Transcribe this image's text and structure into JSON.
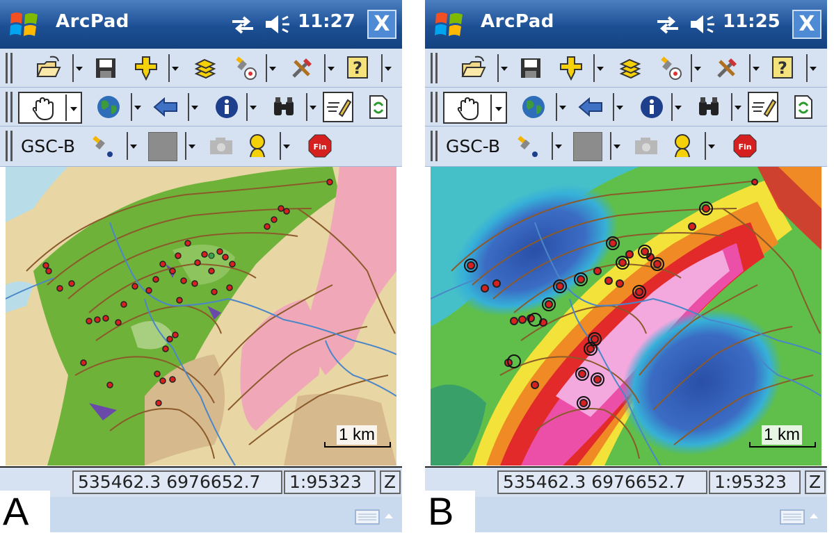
{
  "panels": [
    {
      "letter": "A",
      "app_title": "ArcPad",
      "clock": "11:27",
      "close_label": "X",
      "layer_label": "GSC-B",
      "scale_bar_label": "1 km",
      "status": {
        "coords": "535462.3 6976652.7 m",
        "scale": "1:95323",
        "zone": "Z"
      }
    },
    {
      "letter": "B",
      "app_title": "ArcPad",
      "clock": "11:25",
      "close_label": "X",
      "layer_label": "GSC-B",
      "scale_bar_label": "1 km",
      "status": {
        "coords": "535462.3 6976652.7 m",
        "scale": "1:95323",
        "zone": "Z"
      }
    }
  ],
  "toolbar_row1_icons": [
    "open-folder-icon",
    "save-icon",
    "add-point-icon",
    "layers-icon",
    "gps-icon",
    "tools-icon",
    "help-icon"
  ],
  "toolbar_row2_icons": [
    "pan-hand-icon",
    "globe-icon",
    "back-arrow-icon",
    "info-icon",
    "find-binoculars-icon",
    "edit-icon",
    "refresh-icon"
  ],
  "toolbar_row3_icons": [
    "gps-point-icon",
    "color-swatch",
    "camera-icon",
    "person-icon",
    "stop-icon"
  ],
  "stop_icon_text": "Fin",
  "colors": {
    "titlebar": "#1c4f94",
    "toolbar": "#d6e2f1",
    "geology_green": "#6fb23a",
    "geology_pink": "#f0a8b8",
    "geology_tan": "#e8d6a4",
    "contour": "#8b5a2b",
    "rivers": "#4a86c8",
    "sample_point": "#d92020"
  }
}
